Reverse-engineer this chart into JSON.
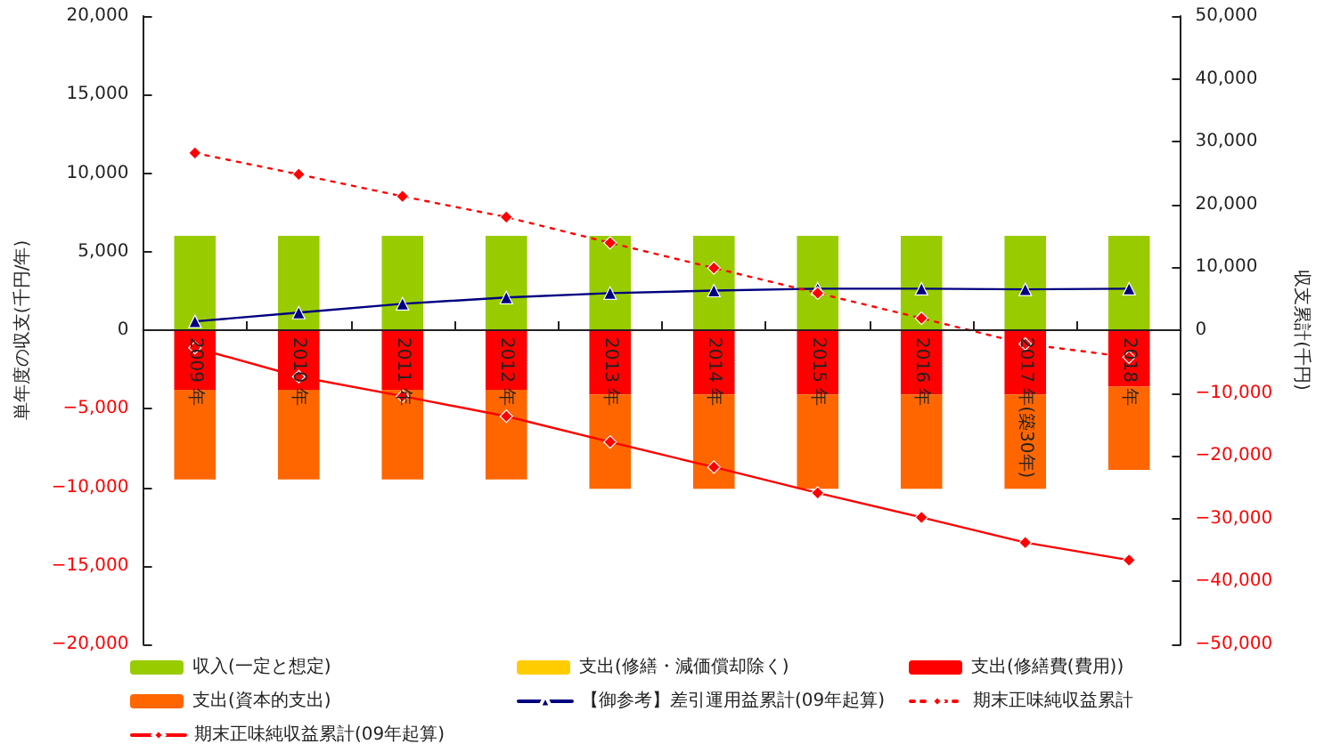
{
  "chart_data": {
    "type": "bar",
    "stacked": true,
    "ylabel": "単年度の収支(千円/年)",
    "y2label": "収支累計(千円)",
    "categories": [
      "2009 年",
      "2010 年",
      "2011 年",
      "2012 年",
      "2013 年",
      "2014 年",
      "2015 年",
      "2016 年",
      "2017 年(築30年)",
      "2018 年"
    ],
    "series": [
      {
        "name": "収入(一定と想定)",
        "color": "#99cc00",
        "values": [
          6000,
          6000,
          6000,
          6000,
          6000,
          6000,
          6000,
          6000,
          6000,
          6000
        ]
      },
      {
        "name": "支出(修繕・減価償却除く)",
        "color": "#ffcc00",
        "values": [
          null,
          null,
          null,
          null,
          null,
          null,
          null,
          null,
          null,
          null
        ]
      },
      {
        "name": "支出(修繕費(費用))",
        "color": "#ff0000",
        "values": [
          -3800,
          -3800,
          -3800,
          -3800,
          -4100,
          -4100,
          -4100,
          -4100,
          -4100,
          -3600
        ]
      },
      {
        "name": "支出(資本的支出)",
        "color": "#ff6600",
        "values": [
          -5700,
          -5700,
          -5700,
          -5700,
          -6000,
          -6000,
          -6000,
          -6000,
          -6000,
          -5300
        ]
      },
      {
        "name": "【御参考】差引運用益累計(09年起算)",
        "type": "line",
        "axis": "y2",
        "color": "#000080",
        "marker": "triangle",
        "line_style": "solid",
        "values": [
          1400,
          2800,
          4200,
          5200,
          5900,
          6300,
          6600,
          6600,
          6500,
          6600
        ]
      },
      {
        "name": "期末正味純収益累計",
        "type": "line",
        "axis": "y2",
        "color": "#ff0000",
        "marker": "diamond",
        "line_style": "dotted",
        "values": [
          28200,
          24800,
          21300,
          18000,
          13900,
          9900,
          5900,
          1900,
          -2200,
          -4300
        ]
      },
      {
        "name": "期末正味純収益累計(09年起算)",
        "type": "line",
        "axis": "y2",
        "color": "#ff0000",
        "marker": "diamond",
        "line_style": "solid",
        "values": [
          -2800,
          -7400,
          -10500,
          -13700,
          -17800,
          -21800,
          -25900,
          -29800,
          -33800,
          -36600
        ]
      }
    ],
    "ylim": [
      -20000,
      20000
    ],
    "yticks": [
      {
        "value": -20000,
        "label": "−20,000"
      },
      {
        "value": -15000,
        "label": "−15,000"
      },
      {
        "value": -10000,
        "label": "−10,000"
      },
      {
        "value": -5000,
        "label": "−5,000"
      },
      0,
      {
        "value": 5000,
        "label": "5,000"
      },
      {
        "value": 10000,
        "label": "10,000"
      },
      {
        "value": 15000,
        "label": "15,000"
      },
      {
        "value": 20000,
        "label": "20,000"
      }
    ],
    "y2lim": [
      -50000,
      50000
    ],
    "y2ticks": [
      {
        "value": -50000,
        "label": "−50,000"
      },
      {
        "value": -40000,
        "label": "−40,000"
      },
      {
        "value": -30000,
        "label": "−30,000"
      },
      {
        "value": -20000,
        "label": "−20,000"
      },
      {
        "value": -10000,
        "label": "−10,000"
      },
      0,
      {
        "value": 10000,
        "label": "10,000"
      },
      {
        "value": 20000,
        "label": "20,000"
      },
      {
        "value": 30000,
        "label": "30,000"
      },
      {
        "value": 40000,
        "label": "40,000"
      },
      {
        "value": 50000,
        "label": "50,000"
      }
    ],
    "grid": false,
    "legend": "bottom"
  }
}
